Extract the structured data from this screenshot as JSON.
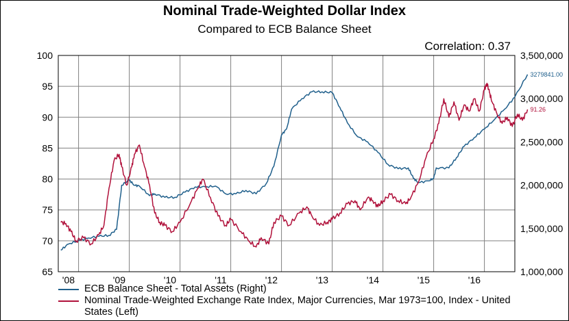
{
  "chart_data": {
    "type": "line",
    "title": "Nominal Trade-Weighted Dollar Index",
    "subtitle": "Compared to ECB Balance Sheet",
    "annotation": "Correlation: 0.37",
    "x_tick_labels": [
      "'08",
      "'09",
      "'10",
      "'11",
      "'12",
      "'13",
      "'14",
      "'15",
      "'16"
    ],
    "x_range": [
      2007.6,
      2016.6
    ],
    "y_left": {
      "ticks": [
        "100",
        "95",
        "90",
        "85",
        "80",
        "75",
        "70",
        "65"
      ],
      "range": [
        65,
        100
      ]
    },
    "y_right": {
      "ticks": [
        "3,500,000",
        "3,000,000",
        "2,500,000",
        "2,000,000",
        "1,500,000",
        "1,000,000"
      ],
      "range": [
        1000000,
        3500000
      ]
    },
    "grid": true,
    "legend_position": "bottom",
    "series": [
      {
        "name": "ECB Balance Sheet - Total Assets  (Right)",
        "axis": "right",
        "color": "#1f5f8b",
        "end_label": "3279841.00",
        "points": [
          [
            2007.65,
            1250000
          ],
          [
            2007.8,
            1320000
          ],
          [
            2008.0,
            1360000
          ],
          [
            2008.2,
            1390000
          ],
          [
            2008.4,
            1410000
          ],
          [
            2008.6,
            1420000
          ],
          [
            2008.75,
            1490000
          ],
          [
            2008.85,
            2000000
          ],
          [
            2009.0,
            2060000
          ],
          [
            2009.1,
            2000000
          ],
          [
            2009.2,
            1990000
          ],
          [
            2009.4,
            1880000
          ],
          [
            2009.5,
            1900000
          ],
          [
            2009.7,
            1860000
          ],
          [
            2009.9,
            1860000
          ],
          [
            2010.1,
            1920000
          ],
          [
            2010.3,
            1980000
          ],
          [
            2010.5,
            1980000
          ],
          [
            2010.7,
            1990000
          ],
          [
            2010.9,
            1900000
          ],
          [
            2011.1,
            1900000
          ],
          [
            2011.3,
            1940000
          ],
          [
            2011.5,
            1900000
          ],
          [
            2011.7,
            2020000
          ],
          [
            2011.85,
            2220000
          ],
          [
            2012.0,
            2580000
          ],
          [
            2012.1,
            2650000
          ],
          [
            2012.2,
            2880000
          ],
          [
            2012.4,
            3000000
          ],
          [
            2012.6,
            3080000
          ],
          [
            2012.8,
            3080000
          ],
          [
            2013.0,
            3070000
          ],
          [
            2013.15,
            2900000
          ],
          [
            2013.3,
            2720000
          ],
          [
            2013.5,
            2560000
          ],
          [
            2013.7,
            2500000
          ],
          [
            2013.9,
            2380000
          ],
          [
            2014.1,
            2240000
          ],
          [
            2014.3,
            2190000
          ],
          [
            2014.5,
            2200000
          ],
          [
            2014.6,
            2080000
          ],
          [
            2014.7,
            2030000
          ],
          [
            2014.9,
            2050000
          ],
          [
            2015.0,
            2080000
          ],
          [
            2015.05,
            2200000
          ],
          [
            2015.3,
            2200000
          ],
          [
            2015.45,
            2320000
          ],
          [
            2015.6,
            2450000
          ],
          [
            2015.8,
            2550000
          ],
          [
            2016.0,
            2650000
          ],
          [
            2016.2,
            2760000
          ],
          [
            2016.4,
            2880000
          ],
          [
            2016.6,
            3020000
          ],
          [
            2016.85,
            3279841
          ]
        ]
      },
      {
        "name": "Nominal Trade-Weighted Exchange Rate Index, Major Currencies, Mar 1973=100, Index - United States  (Left)",
        "axis": "left",
        "color": "#b0103a",
        "end_label": "91.26",
        "points": [
          [
            2007.65,
            73.0
          ],
          [
            2007.75,
            72.8
          ],
          [
            2007.85,
            71.5
          ],
          [
            2007.95,
            70.0
          ],
          [
            2008.1,
            70.5
          ],
          [
            2008.25,
            69.5
          ],
          [
            2008.4,
            71.0
          ],
          [
            2008.5,
            72.5
          ],
          [
            2008.6,
            78.5
          ],
          [
            2008.7,
            83.0
          ],
          [
            2008.8,
            84.0
          ],
          [
            2008.85,
            82.0
          ],
          [
            2008.95,
            79.0
          ],
          [
            2009.05,
            82.0
          ],
          [
            2009.1,
            84.0
          ],
          [
            2009.2,
            85.5
          ],
          [
            2009.3,
            82.0
          ],
          [
            2009.4,
            79.0
          ],
          [
            2009.5,
            74.5
          ],
          [
            2009.6,
            73.0
          ],
          [
            2009.7,
            72.5
          ],
          [
            2009.85,
            71.5
          ],
          [
            2010.0,
            73.0
          ],
          [
            2010.2,
            76.0
          ],
          [
            2010.35,
            78.5
          ],
          [
            2010.45,
            80.0
          ],
          [
            2010.6,
            77.0
          ],
          [
            2010.75,
            74.0
          ],
          [
            2010.9,
            72.5
          ],
          [
            2011.0,
            73.5
          ],
          [
            2011.2,
            71.5
          ],
          [
            2011.35,
            70.0
          ],
          [
            2011.5,
            69.0
          ],
          [
            2011.6,
            70.5
          ],
          [
            2011.75,
            69.5
          ],
          [
            2011.85,
            73.0
          ],
          [
            2012.0,
            74.0
          ],
          [
            2012.15,
            72.5
          ],
          [
            2012.35,
            74.5
          ],
          [
            2012.5,
            75.5
          ],
          [
            2012.6,
            74.0
          ],
          [
            2012.75,
            72.5
          ],
          [
            2012.9,
            73.0
          ],
          [
            2013.0,
            73.5
          ],
          [
            2013.15,
            74.5
          ],
          [
            2013.3,
            76.0
          ],
          [
            2013.45,
            76.5
          ],
          [
            2013.55,
            75.0
          ],
          [
            2013.7,
            77.0
          ],
          [
            2013.8,
            76.5
          ],
          [
            2013.9,
            75.5
          ],
          [
            2014.0,
            76.5
          ],
          [
            2014.15,
            77.5
          ],
          [
            2014.3,
            76.5
          ],
          [
            2014.45,
            76.0
          ],
          [
            2014.55,
            77.0
          ],
          [
            2014.7,
            79.5
          ],
          [
            2014.85,
            83.5
          ],
          [
            2015.0,
            86.5
          ],
          [
            2015.1,
            89.0
          ],
          [
            2015.2,
            93.0
          ],
          [
            2015.3,
            90.0
          ],
          [
            2015.4,
            92.5
          ],
          [
            2015.5,
            89.5
          ],
          [
            2015.6,
            92.0
          ],
          [
            2015.7,
            91.0
          ],
          [
            2015.8,
            93.0
          ],
          [
            2015.9,
            91.0
          ],
          [
            2016.0,
            94.5
          ],
          [
            2016.05,
            95.5
          ],
          [
            2016.1,
            94.0
          ],
          [
            2016.15,
            92.5
          ],
          [
            2016.25,
            90.5
          ],
          [
            2016.35,
            89.0
          ],
          [
            2016.45,
            90.0
          ],
          [
            2016.55,
            88.5
          ],
          [
            2016.65,
            90.5
          ],
          [
            2016.75,
            89.5
          ],
          [
            2016.85,
            91.26
          ]
        ]
      }
    ]
  }
}
